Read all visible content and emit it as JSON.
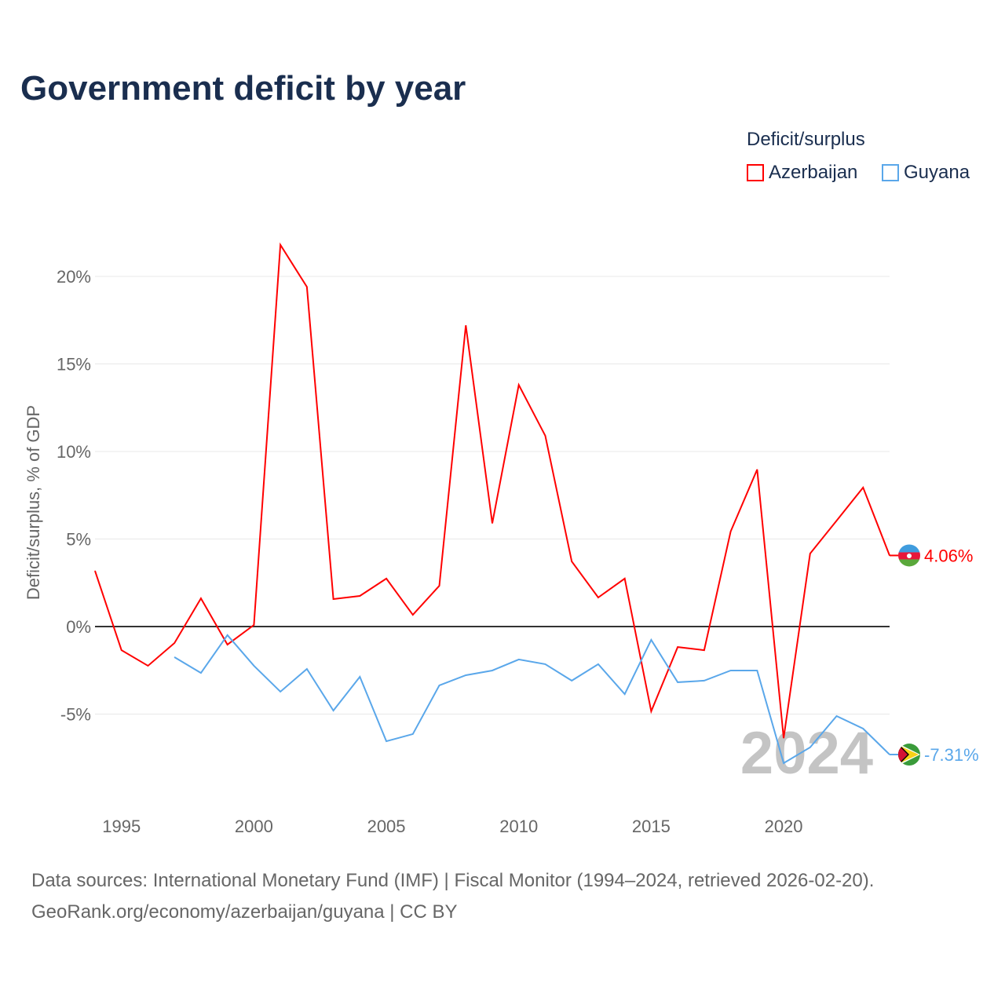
{
  "title": "Government deficit by year",
  "legend": {
    "title": "Deficit/surplus",
    "items": [
      {
        "name": "Azerbaijan",
        "color": "#ff0000"
      },
      {
        "name": "Guyana",
        "color": "#5aa7ea"
      }
    ]
  },
  "footer": {
    "line1": "Data sources: International Monetary Fund (IMF) | Fiscal Monitor (1994–2024, retrieved 2026-02-20).",
    "line2": "GeoRank.org/economy/azerbaijan/guyana | CC BY"
  },
  "chart_data": {
    "type": "line",
    "title": "Government deficit by year",
    "ylabel": "Deficit/surplus, % of GDP",
    "xlabel": "",
    "xlim": [
      1994,
      2024
    ],
    "ylim": [
      -9,
      23
    ],
    "x_ticks": [
      1995,
      2000,
      2005,
      2010,
      2015,
      2020
    ],
    "x_tick_labels": [
      "1995",
      "2000",
      "2005",
      "2010",
      "2015",
      "2020"
    ],
    "y_ticks": [
      -5,
      0,
      5,
      10,
      15,
      20
    ],
    "y_tick_labels": [
      "-5%",
      "0%",
      "5%",
      "10%",
      "15%",
      "20%"
    ],
    "year_watermark": "2024",
    "series": [
      {
        "name": "Azerbaijan",
        "color": "#ff0000",
        "end_label": "4.06%",
        "x": [
          1994,
          1995,
          1996,
          1997,
          1998,
          1999,
          2000,
          2001,
          2002,
          2003,
          2004,
          2005,
          2006,
          2007,
          2008,
          2009,
          2010,
          2011,
          2012,
          2013,
          2014,
          2015,
          2016,
          2017,
          2018,
          2019,
          2020,
          2021,
          2022,
          2023,
          2024
        ],
        "values": [
          3.18,
          -1.35,
          -2.24,
          -0.94,
          1.61,
          -1.03,
          0.09,
          21.8,
          19.4,
          1.57,
          1.75,
          2.74,
          0.67,
          2.33,
          17.2,
          5.9,
          13.8,
          10.9,
          3.72,
          1.66,
          2.74,
          -4.84,
          -1.17,
          -1.35,
          5.43,
          8.97,
          -6.37,
          4.17,
          6.05,
          7.94,
          4.06
        ]
      },
      {
        "name": "Guyana",
        "color": "#5aa7ea",
        "end_label": "-7.31%",
        "x": [
          1997,
          1998,
          1999,
          2000,
          2001,
          2002,
          2003,
          2004,
          2005,
          2006,
          2007,
          2008,
          2009,
          2010,
          2011,
          2012,
          2013,
          2014,
          2015,
          2016,
          2017,
          2018,
          2019,
          2020,
          2021,
          2022,
          2023,
          2024
        ],
        "values": [
          -1.75,
          -2.65,
          -0.49,
          -2.24,
          -3.72,
          -2.42,
          -4.8,
          -2.87,
          -6.55,
          -6.14,
          -3.36,
          -2.78,
          -2.51,
          -1.88,
          -2.15,
          -3.09,
          -2.15,
          -3.86,
          -0.76,
          -3.18,
          -3.09,
          -2.51,
          -2.51,
          -7.8,
          -6.9,
          -5.11,
          -5.83,
          -7.31
        ]
      }
    ]
  }
}
